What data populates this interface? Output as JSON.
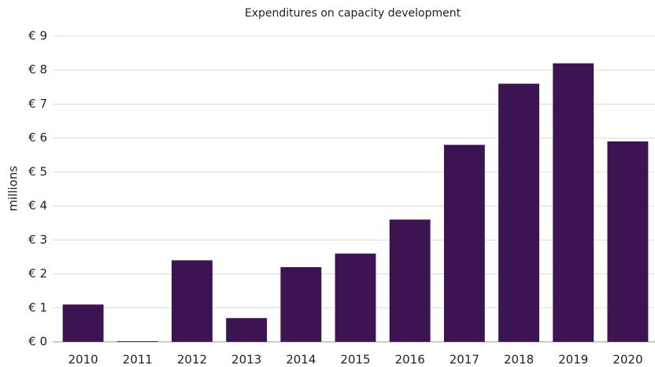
{
  "chart_data": {
    "type": "bar",
    "title": "Expenditures on capacity development",
    "y_label": "millions",
    "categories": [
      "2010",
      "2011",
      "2012",
      "2013",
      "2014",
      "2015",
      "2016",
      "2017",
      "2018",
      "2019",
      "2020"
    ],
    "values": [
      1.1,
      0.02,
      2.4,
      0.7,
      2.2,
      2.6,
      3.6,
      5.8,
      7.6,
      8.2,
      5.9
    ],
    "color": "#3d1452",
    "ylim": [
      0,
      9
    ],
    "yticks": [
      {
        "value": 0,
        "label": "€ 0"
      },
      {
        "value": 1,
        "label": "€ 1"
      },
      {
        "value": 2,
        "label": "€ 2"
      },
      {
        "value": 3,
        "label": "€ 3"
      },
      {
        "value": 4,
        "label": "€ 4"
      },
      {
        "value": 5,
        "label": "€ 5"
      },
      {
        "value": 6,
        "label": "€ 6"
      },
      {
        "value": 7,
        "label": "€ 7"
      },
      {
        "value": 8,
        "label": "€ 8"
      },
      {
        "value": 9,
        "label": "€ 9"
      }
    ],
    "grid": true
  }
}
